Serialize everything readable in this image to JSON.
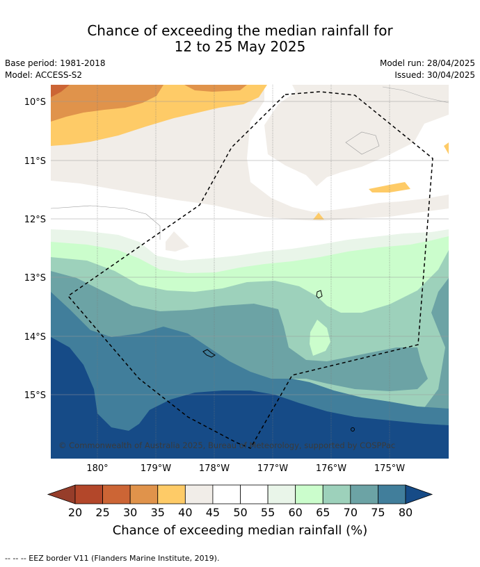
{
  "title_line1": "Chance of exceeding the median rainfall for",
  "title_line2": "12 to 25 May 2025",
  "base_period": "Base period: 1981-2018",
  "model": "Model: ACCESS-S2",
  "model_run": "Model run: 28/04/2025",
  "issued": "Issued: 30/04/2025",
  "lat_labels": [
    "10°S",
    "11°S",
    "12°S",
    "13°S",
    "14°S",
    "15°S"
  ],
  "lon_labels": [
    "180°",
    "179°W",
    "178°W",
    "177°W",
    "176°W",
    "175°W"
  ],
  "copyright": "© Commonwealth of Australia 2025, Bureau of Meteorology, supported by COSPPac",
  "colorbar": {
    "ticks": [
      "20",
      "25",
      "30",
      "35",
      "40",
      "45",
      "50",
      "55",
      "60",
      "65",
      "70",
      "75",
      "80"
    ],
    "colors": [
      "#b3472a",
      "#cc6535",
      "#e0934b",
      "#fecb67",
      "#f1ede8",
      "#ffffff",
      "#ffffff",
      "#e9f5e9",
      "#cbfdcc",
      "#9dd1bb",
      "#6ca3a5",
      "#417e9b"
    ],
    "under_color": "#963d2a",
    "over_color": "#164b87",
    "label": "Chance of exceeding median rainfall (%)"
  },
  "footer": "-- -- -- EEZ border V11 (Flanders Marine Institute, 2019)."
}
